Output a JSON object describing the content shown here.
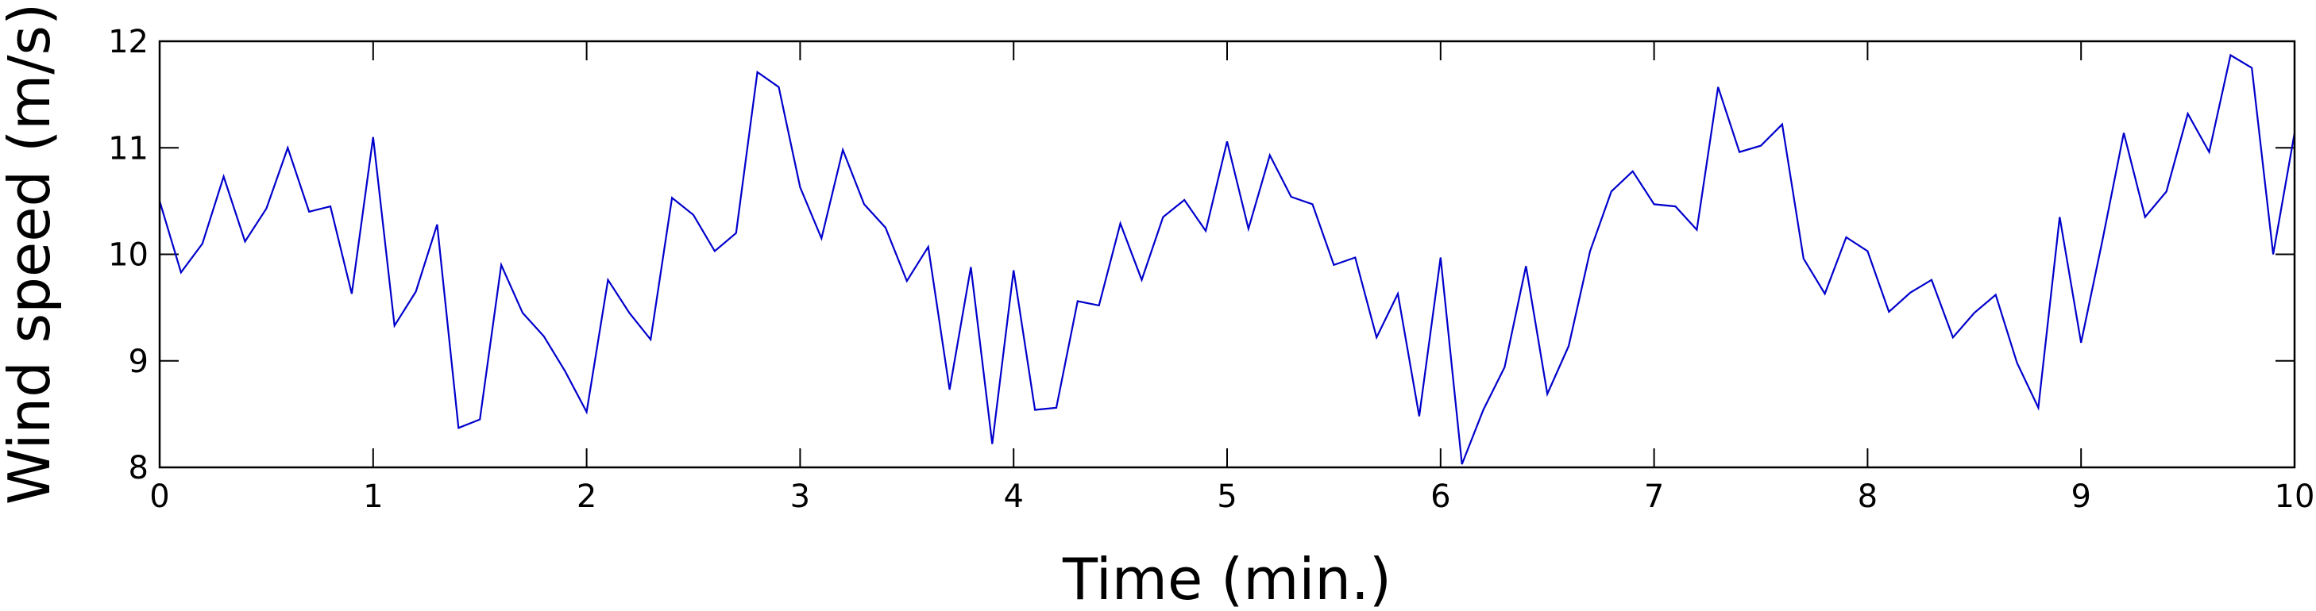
{
  "chart_data": {
    "type": "line",
    "xlabel": "Time (min.)",
    "ylabel": "Wind speed (m/s)",
    "xlim": [
      0,
      10
    ],
    "ylim": [
      8,
      12
    ],
    "xticks": [
      "0",
      "1",
      "2",
      "3",
      "4",
      "5",
      "6",
      "7",
      "8",
      "9",
      "10"
    ],
    "yticks": [
      "8",
      "9",
      "10",
      "11",
      "12"
    ],
    "grid": false,
    "color": "#0000cc",
    "series": [
      {
        "x": [
          0,
          0.1,
          0.2,
          0.3,
          0.4,
          0.5,
          0.6,
          0.7,
          0.8,
          0.9,
          1,
          1.1,
          1.2,
          1.3,
          1.4,
          1.5,
          1.6,
          1.7,
          1.8,
          1.9,
          2,
          2.1,
          2.2,
          2.3,
          2.4,
          2.5,
          2.6,
          2.7,
          2.8,
          2.9,
          3,
          3.1,
          3.2,
          3.3,
          3.4,
          3.5,
          3.6,
          3.7,
          3.8,
          3.9,
          4,
          4.1,
          4.2,
          4.3,
          4.4,
          4.5,
          4.6,
          4.7,
          4.8,
          4.9,
          5,
          5.1,
          5.2,
          5.3,
          5.4,
          5.5,
          5.6,
          5.7,
          5.8,
          5.9,
          6,
          6.1,
          6.2,
          6.3,
          6.4,
          6.5,
          6.6,
          6.7,
          6.8,
          6.9,
          7,
          7.1,
          7.2,
          7.3,
          7.4,
          7.5,
          7.6,
          7.7,
          7.8,
          7.9,
          8,
          8.1,
          8.2,
          8.3,
          8.4,
          8.5,
          8.6,
          8.7,
          8.8,
          8.9,
          9,
          9.1,
          9.2,
          9.3,
          9.4,
          9.5,
          9.6,
          9.7,
          9.8,
          9.9,
          10
        ],
        "y": [
          10.5,
          9.83,
          10.1,
          10.73,
          10.12,
          10.43,
          11.0,
          10.4,
          10.45,
          9.63,
          11.1,
          9.33,
          9.65,
          10.28,
          8.37,
          8.45,
          9.9,
          9.45,
          9.23,
          8.9,
          8.52,
          9.76,
          9.45,
          9.2,
          10.53,
          10.37,
          10.03,
          10.2,
          11.71,
          11.57,
          10.63,
          10.15,
          10.98,
          10.47,
          10.25,
          9.75,
          10.07,
          8.73,
          9.88,
          8.22,
          9.85,
          8.54,
          8.56,
          9.56,
          9.52,
          10.29,
          9.76,
          10.35,
          10.51,
          10.22,
          11.06,
          10.24,
          10.93,
          10.54,
          10.47,
          9.9,
          9.97,
          9.22,
          9.63,
          8.48,
          9.97,
          8.03,
          8.54,
          8.94,
          9.89,
          8.69,
          9.14,
          10.03,
          10.59,
          10.78,
          10.47,
          10.45,
          10.23,
          11.57,
          10.96,
          11.02,
          11.22,
          9.96,
          9.63,
          10.16,
          10.03,
          9.46,
          9.64,
          9.76,
          9.22,
          9.45,
          9.62,
          8.98,
          8.56,
          10.35,
          9.17,
          10.13,
          11.14,
          10.35,
          10.59,
          11.32,
          10.96,
          11.87,
          11.75,
          10.0,
          11.14
        ]
      }
    ]
  }
}
